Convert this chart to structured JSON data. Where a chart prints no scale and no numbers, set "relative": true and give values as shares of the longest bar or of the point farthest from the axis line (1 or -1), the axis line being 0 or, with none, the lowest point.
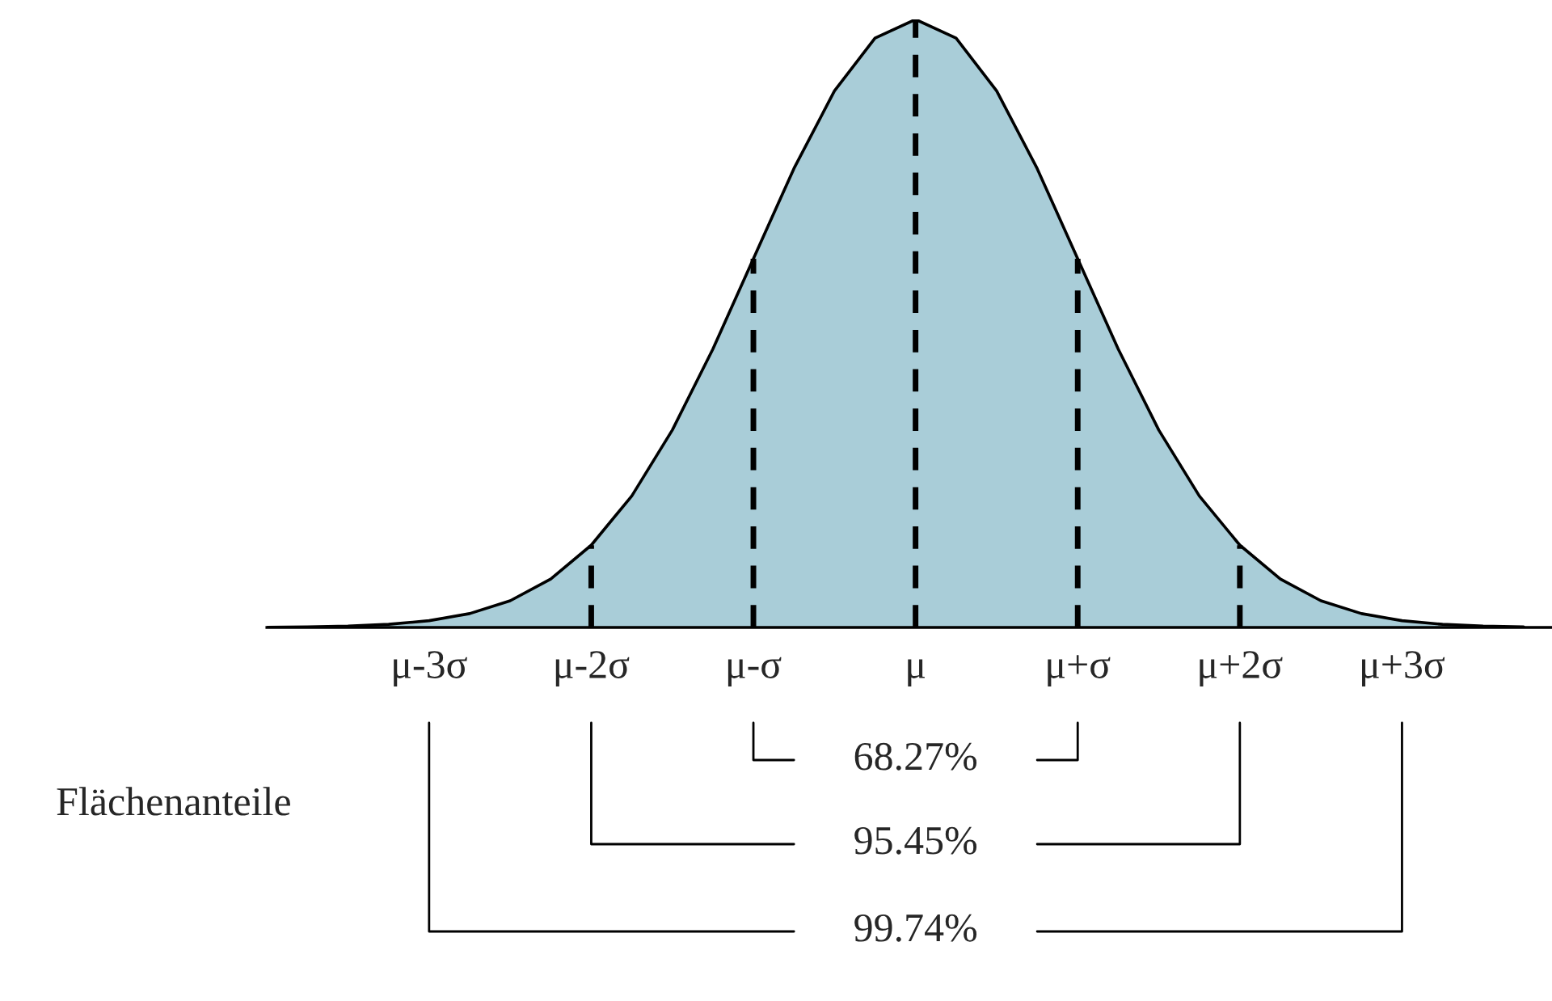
{
  "chart_data": {
    "type": "area",
    "relative": true,
    "categories": [
      null,
      null,
      null,
      null,
      "μ-3σ",
      null,
      null,
      null,
      "μ-2σ",
      null,
      null,
      null,
      "μ-σ",
      null,
      null,
      null,
      "μ",
      null,
      null,
      null,
      "μ+σ",
      null,
      null,
      null,
      "μ+2σ",
      null,
      null,
      null,
      "μ+3σ",
      null,
      null,
      null
    ],
    "series": [
      {
        "color": "#a9cdd8",
        "values": [
          0.0003,
          0.0009,
          0.0022,
          0.0051,
          0.0111,
          0.0228,
          0.0439,
          0.0796,
          0.1353,
          0.2163,
          0.3247,
          0.4578,
          0.6065,
          0.7548,
          0.8825,
          0.9692,
          1,
          0.9692,
          0.8825,
          0.7548,
          0.6065,
          0.4578,
          0.3247,
          0.2163,
          0.1353,
          0.0796,
          0.0439,
          0.0228,
          0.0111,
          0.0051,
          0.0022,
          0.0009
        ]
      }
    ],
    "ref_lines": [
      {
        "axis": "x",
        "value": "μ-2σ",
        "line_style": "dashed"
      },
      {
        "axis": "x",
        "value": "μ-σ",
        "line_style": "dashed"
      },
      {
        "axis": "x",
        "value": "μ",
        "line_style": "dashed"
      },
      {
        "axis": "x",
        "value": "μ+σ",
        "line_style": "dashed"
      },
      {
        "axis": "x",
        "value": "μ+2σ",
        "line_style": "dashed"
      }
    ],
    "annotations": [
      "Flächenanteile",
      "68.27%",
      "95.45%",
      "99.74%"
    ],
    "grid": false,
    "legend": false
  }
}
